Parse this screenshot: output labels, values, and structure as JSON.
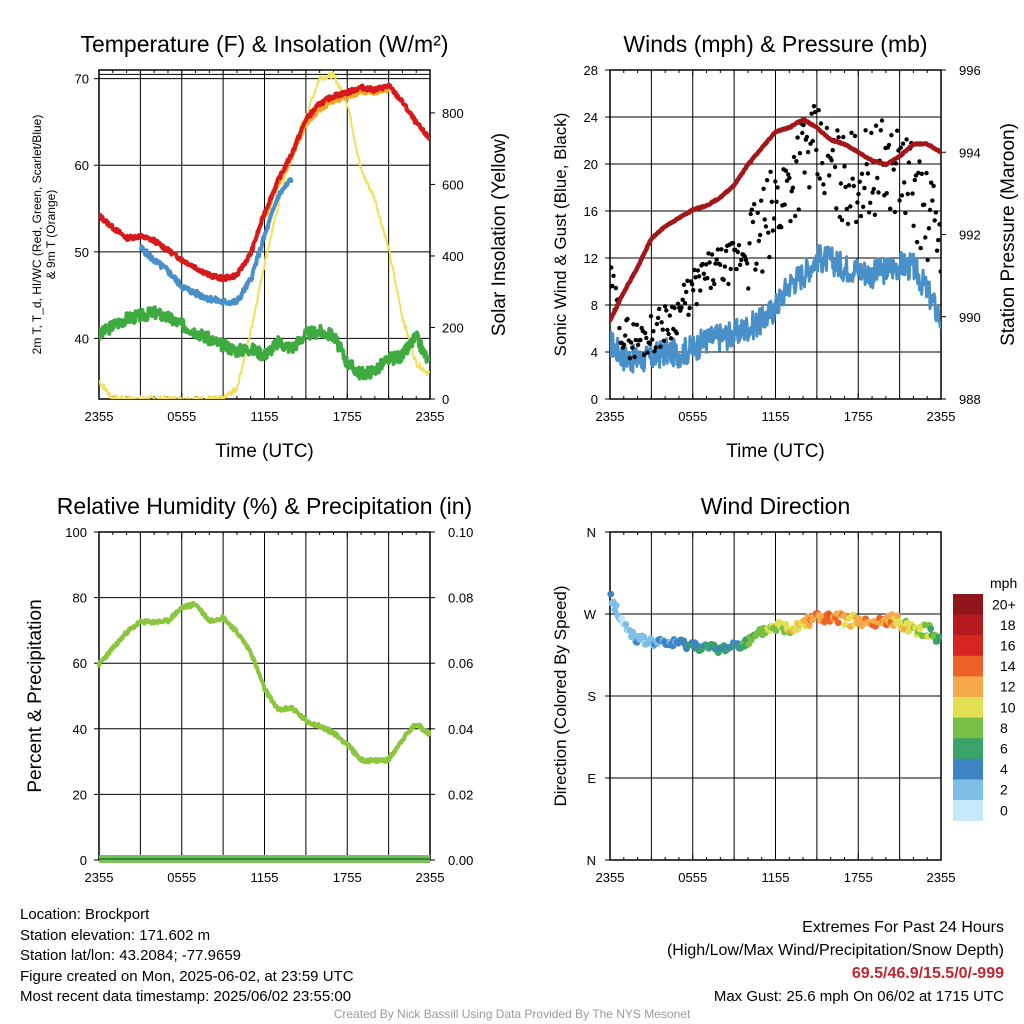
{
  "chart_data": [
    {
      "type": "line",
      "title": "Temperature (F) & Insolation (W/m²)",
      "x_ticks": [
        "2355",
        "0555",
        "1155",
        "1755",
        "2355"
      ],
      "xlabel": "Time (UTC)",
      "ylabel_lines": [
        "2m T, T_d, HI/WC (Red, Green, Scarlet/Blue)",
        "& 9m T (Orange)"
      ],
      "ylim": [
        33,
        71
      ],
      "yticks": [
        40,
        50,
        60,
        70
      ],
      "y2label": "Solar Insolation (Yellow)",
      "y2lim": [
        0,
        920
      ],
      "y2ticks": [
        0,
        200,
        400,
        600,
        800
      ],
      "x_hours": [
        0,
        1,
        2,
        3,
        4,
        5,
        6,
        7,
        8,
        9,
        10,
        11,
        12,
        13,
        14,
        15,
        16,
        17,
        18,
        19,
        20,
        21,
        22,
        23,
        24
      ],
      "series": [
        {
          "name": "2m T",
          "color": "#d7191c",
          "axis": "left",
          "values": [
            54.2,
            52.8,
            51.6,
            51.8,
            51.3,
            50.2,
            49.1,
            48.2,
            47.3,
            46.9,
            47.3,
            49.8,
            54.5,
            58.3,
            61.4,
            65.3,
            67.1,
            68.0,
            68.4,
            69.0,
            68.7,
            69.2,
            67.3,
            64.9,
            63.0
          ]
        },
        {
          "name": "Td",
          "color": "#3faa3f",
          "axis": "left",
          "values": [
            40.3,
            41.5,
            42.3,
            42.6,
            43.0,
            42.4,
            41.6,
            40.8,
            39.9,
            39.2,
            38.6,
            38.8,
            38.1,
            39.5,
            38.9,
            40.5,
            40.8,
            40.3,
            37.2,
            35.9,
            36.3,
            37.6,
            38.0,
            40.2,
            36.9
          ]
        },
        {
          "name": "HI/WC",
          "color": "#4a90c8",
          "axis": "left",
          "values": [
            52.3,
            null,
            null,
            50.5,
            49.0,
            47.8,
            46.0,
            45.2,
            44.6,
            44.2,
            44.2,
            46.8,
            51.8,
            56.5,
            58.5,
            null,
            null,
            null,
            null,
            null,
            null,
            null,
            null,
            null,
            null
          ]
        },
        {
          "name": "9m T",
          "color": "#f5a623",
          "axis": "left",
          "values": [
            null,
            null,
            null,
            null,
            null,
            null,
            null,
            null,
            null,
            null,
            null,
            null,
            54.0,
            58.0,
            61.0,
            64.9,
            66.5,
            67.5,
            68.0,
            68.5,
            68.5,
            68.9,
            null,
            null,
            null
          ]
        },
        {
          "name": "Solar Insolation",
          "color": "#f2e05a",
          "axis": "right",
          "values": [
            50,
            2,
            0,
            0,
            0,
            0,
            0,
            0,
            0,
            0,
            30,
            190,
            380,
            540,
            700,
            790,
            900,
            905,
            830,
            640,
            560,
            420,
            230,
            100,
            70
          ]
        }
      ]
    },
    {
      "type": "line",
      "title": "Winds (mph) & Pressure (mb)",
      "x_ticks": [
        "2355",
        "0555",
        "1155",
        "1755",
        "2355"
      ],
      "xlabel": "Time (UTC)",
      "ylabel": "Sonic Wind & Gust (Blue, Black)",
      "ylim": [
        0,
        28
      ],
      "yticks": [
        0,
        4,
        8,
        12,
        16,
        20,
        24,
        28
      ],
      "y2label": "Station Pressure (Maroon)",
      "y2lim": [
        988,
        996
      ],
      "y2ticks": [
        988,
        990,
        992,
        994,
        996
      ],
      "x_hours": [
        0,
        1,
        2,
        3,
        4,
        5,
        6,
        7,
        8,
        9,
        10,
        11,
        12,
        13,
        14,
        15,
        16,
        17,
        18,
        19,
        20,
        21,
        22,
        23,
        24
      ],
      "series": [
        {
          "name": "Sonic Wind",
          "color": "#4a90c8",
          "axis": "left",
          "values": [
            4.8,
            3.6,
            3.3,
            3.5,
            4.0,
            3.9,
            4.3,
            5.0,
            5.3,
            5.5,
            6.1,
            6.6,
            7.8,
            9.8,
            10.6,
            12.0,
            11.8,
            11.2,
            11.0,
            10.6,
            11.0,
            11.4,
            11.2,
            9.2,
            6.7
          ]
        },
        {
          "name": "Gust",
          "color": "#000000",
          "axis": "left",
          "values": [
            10.0,
            5.4,
            5.0,
            5.6,
            6.4,
            7.5,
            9.2,
            10.6,
            11.2,
            11.7,
            12.8,
            13.9,
            16.3,
            18.5,
            20.8,
            21.0,
            19.7,
            18.7,
            19.0,
            19.4,
            20.0,
            19.5,
            18.1,
            15.3,
            14.4
          ]
        },
        {
          "name": "Station Pressure",
          "color": "#a3171b",
          "axis": "right",
          "values": [
            989.9,
            990.6,
            991.2,
            991.9,
            992.2,
            992.4,
            992.6,
            992.7,
            992.9,
            993.2,
            993.7,
            994.1,
            994.5,
            994.6,
            994.8,
            994.6,
            994.3,
            994.2,
            994.0,
            993.8,
            993.7,
            993.9,
            994.2,
            994.2,
            994.0
          ]
        }
      ]
    },
    {
      "type": "line",
      "title": "Relative Humidity (%) & Precipitation (in)",
      "x_ticks": [
        "2355",
        "0555",
        "1155",
        "1755",
        "2355"
      ],
      "ylabel": "Percent & Precipitation",
      "ylim": [
        0,
        100
      ],
      "yticks": [
        0,
        20,
        40,
        60,
        80,
        100
      ],
      "y2lim": [
        0,
        0.1
      ],
      "y2ticks": [
        "0.00",
        "0.02",
        "0.04",
        "0.06",
        "0.08",
        "0.10"
      ],
      "x_hours": [
        0,
        1,
        2,
        3,
        4,
        5,
        6,
        7,
        8,
        9,
        10,
        11,
        12,
        13,
        14,
        15,
        16,
        17,
        18,
        19,
        20,
        21,
        22,
        23,
        24
      ],
      "series": [
        {
          "name": "Relative Humidity",
          "color": "#8cc63f",
          "axis": "left",
          "values": [
            59.7,
            64.5,
            69.4,
            72.6,
            72.5,
            72.9,
            76.9,
            78.1,
            72.9,
            74.0,
            69.5,
            63.5,
            52.2,
            45.7,
            46.4,
            42.4,
            40.8,
            38.8,
            35.3,
            30.5,
            30.2,
            30.6,
            36.8,
            41.6,
            38.3
          ]
        },
        {
          "name": "Precipitation",
          "color": "#2e8b3a",
          "axis": "left",
          "values": [
            0,
            0,
            0,
            0,
            0,
            0,
            0,
            0,
            0,
            0,
            0,
            0,
            0,
            0,
            0,
            0,
            0,
            0,
            0,
            0,
            0,
            0,
            0,
            0,
            0
          ]
        }
      ]
    },
    {
      "type": "scatter",
      "title": "Wind Direction",
      "x_ticks": [
        "2355",
        "0555",
        "1155",
        "1755",
        "2355"
      ],
      "ylabel": "Direction (Colored By Speed)",
      "ylim": [
        0,
        360
      ],
      "yticks": [
        "N",
        "E",
        "S",
        "W",
        "N"
      ],
      "legend_title": "mph",
      "legend_labels": [
        "0",
        "2",
        "4",
        "6",
        "8",
        "10",
        "12",
        "14",
        "16",
        "18",
        "20+"
      ],
      "legend_colors": [
        "#c6e9fa",
        "#7dbfe5",
        "#3f84c2",
        "#3aa36a",
        "#77bf45",
        "#e3df52",
        "#f5a94a",
        "#ee6228",
        "#d6251e",
        "#b51a1f",
        "#8f1518"
      ],
      "x_hours": [
        0,
        1,
        2,
        3,
        4,
        5,
        6,
        7,
        8,
        9,
        10,
        11,
        12,
        13,
        14,
        15,
        16,
        17,
        18,
        19,
        20,
        21,
        22,
        23,
        24
      ],
      "direction_deg": [
        290,
        258,
        242,
        239,
        238,
        238,
        236,
        233,
        231,
        236,
        239,
        250,
        257,
        254,
        262,
        267,
        264,
        264,
        262,
        258,
        263,
        262,
        254,
        252,
        244
      ],
      "speed_mph": [
        3.5,
        2,
        3.5,
        3,
        4.5,
        5,
        6,
        6.5,
        6,
        5.5,
        8,
        9,
        10,
        11,
        12,
        14,
        15,
        13,
        12,
        14,
        13,
        12,
        10,
        9,
        7
      ]
    }
  ],
  "info": {
    "location": "Location: Brockport",
    "elevation": "Station elevation: 171.602 m",
    "latlon": "Station lat/lon: 43.2084; -77.9659",
    "created": "Figure created on Mon, 2025-06-02, at 23:59 UTC",
    "recent": "Most recent data timestamp: 2025/06/02 23:55:00"
  },
  "extremes": {
    "title": "Extremes For Past 24 Hours",
    "subtitle": "(High/Low/Max Wind/Precipitation/Snow Depth)",
    "values": "69.5/46.9/15.5/0/-999",
    "max_gust": "Max Gust: 25.6 mph On 06/02 at 1715 UTC"
  },
  "credit": "Created By Nick Bassill Using Data Provided By The NYS Mesonet"
}
